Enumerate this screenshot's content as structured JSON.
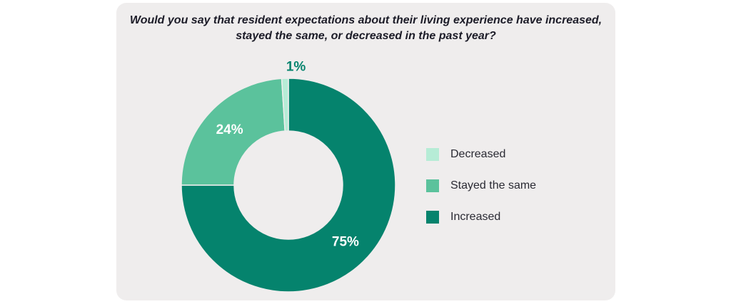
{
  "chart_data": {
    "type": "pie",
    "title_lines": [
      "Would you say that resident expectations about their living experience have increased,",
      "stayed the same, or decreased in the past year?"
    ],
    "slices": [
      {
        "name": "Increased",
        "value": 75,
        "label": "75%",
        "color": "#05836d"
      },
      {
        "name": "Stayed the same",
        "value": 24,
        "label": "24%",
        "color": "#5bc29c"
      },
      {
        "name": "Decreased",
        "value": 1,
        "label": "1%",
        "color": "#b6ecd6"
      }
    ],
    "legend_order": [
      "Decreased",
      "Stayed the same",
      "Increased"
    ],
    "legend_position": "right",
    "donut": true
  }
}
